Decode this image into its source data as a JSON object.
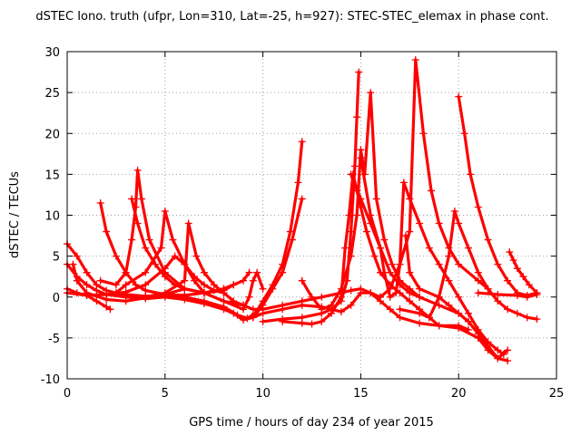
{
  "chart_data": {
    "type": "scatter",
    "title": "dSTEC Iono. truth (ufpr, Lon=310, Lat=-25, h=927): STEC-STEC_elemax in phase cont.",
    "xlabel": "GPS time / hours of day 234 of year 2015",
    "ylabel": "dSTEC  / TECUs",
    "xlim": [
      0,
      25
    ],
    "ylim": [
      -10,
      30
    ],
    "xticks": [
      0,
      5,
      10,
      15,
      20,
      25
    ],
    "yticks": [
      -10,
      -5,
      0,
      5,
      10,
      15,
      20,
      25,
      30
    ],
    "grid": true,
    "marker_color": "#ff0000",
    "series": [
      {
        "points": [
          [
            0,
            6.5
          ],
          [
            0.5,
            5
          ],
          [
            1,
            3
          ],
          [
            1.5,
            1.5
          ],
          [
            2,
            0.8
          ],
          [
            2.5,
            0.5
          ],
          [
            3,
            0.3
          ],
          [
            4,
            0.1
          ],
          [
            5,
            0.2
          ],
          [
            6,
            0
          ],
          [
            7,
            -0.5
          ],
          [
            8,
            -1.2
          ],
          [
            8.7,
            -2.2
          ],
          [
            9.2,
            -2.6
          ],
          [
            9.6,
            -2
          ],
          [
            10,
            -0.5
          ],
          [
            10.5,
            1.5
          ],
          [
            11,
            4
          ],
          [
            11.4,
            8
          ],
          [
            11.8,
            14
          ],
          [
            12,
            19
          ]
        ]
      },
      {
        "points": [
          [
            0,
            4
          ],
          [
            0.5,
            2.5
          ],
          [
            1,
            1.5
          ],
          [
            1.5,
            0.8
          ],
          [
            2,
            0.3
          ],
          [
            3,
            0
          ],
          [
            4,
            -0.2
          ],
          [
            5,
            0
          ],
          [
            6,
            -0.3
          ],
          [
            7,
            -0.8
          ],
          [
            8,
            -1.5
          ],
          [
            8.5,
            -2
          ],
          [
            9,
            -2.8
          ],
          [
            9.5,
            -2.5
          ],
          [
            10,
            -1
          ],
          [
            10.5,
            1
          ],
          [
            11,
            3
          ],
          [
            11.5,
            7
          ],
          [
            12,
            12
          ]
        ]
      },
      {
        "points": [
          [
            0,
            1
          ],
          [
            0.5,
            0.5
          ],
          [
            1,
            0.2
          ],
          [
            1.5,
            -0.5
          ],
          [
            2,
            -1.2
          ],
          [
            2.2,
            -1.5
          ]
        ]
      },
      {
        "points": [
          [
            0,
            0.5
          ],
          [
            1,
            0.2
          ],
          [
            2,
            0.3
          ],
          [
            3,
            0.6
          ],
          [
            4,
            1.5
          ],
          [
            5,
            3.5
          ],
          [
            5.5,
            5
          ],
          [
            6,
            4
          ],
          [
            6.5,
            2
          ],
          [
            7,
            0.5
          ],
          [
            8,
            -0.5
          ],
          [
            9,
            -1
          ],
          [
            9.5,
            -1.5
          ],
          [
            10,
            -1.5
          ],
          [
            11,
            -1
          ],
          [
            12,
            -0.5
          ],
          [
            13,
            0
          ],
          [
            14,
            0.5
          ],
          [
            14.5,
            0.8
          ],
          [
            15,
            1
          ],
          [
            15.5,
            0.5
          ],
          [
            16,
            -0.5
          ],
          [
            16.5,
            -1.5
          ],
          [
            17,
            -2.5
          ],
          [
            18,
            -3.2
          ],
          [
            19,
            -3.5
          ],
          [
            20,
            -3.8
          ],
          [
            21,
            -5
          ],
          [
            21.5,
            -6.5
          ],
          [
            22,
            -7.5
          ],
          [
            22.5,
            -6.5
          ]
        ]
      },
      {
        "points": [
          [
            1.7,
            11.5
          ],
          [
            2,
            8
          ],
          [
            2.5,
            5
          ],
          [
            3,
            3
          ],
          [
            3.5,
            1.5
          ],
          [
            4,
            0.8
          ],
          [
            5,
            0.3
          ],
          [
            6,
            0.2
          ],
          [
            7,
            0.5
          ],
          [
            8,
            1
          ],
          [
            8.5,
            1.5
          ]
        ]
      },
      {
        "points": [
          [
            1.7,
            2
          ],
          [
            2.5,
            1.5
          ],
          [
            3,
            3
          ],
          [
            3.3,
            7
          ],
          [
            3.5,
            11
          ],
          [
            3.6,
            15.5
          ],
          [
            3.8,
            12
          ],
          [
            4.2,
            7
          ],
          [
            5,
            3
          ],
          [
            6,
            1
          ],
          [
            7,
            0.5
          ],
          [
            8,
            0.8
          ],
          [
            8.5,
            1.5
          ]
        ]
      },
      {
        "points": [
          [
            3.3,
            12
          ],
          [
            3.6,
            9
          ],
          [
            4,
            6
          ],
          [
            4.5,
            4
          ],
          [
            5,
            2.5
          ],
          [
            5.5,
            1.5
          ],
          [
            6,
            1
          ],
          [
            7,
            0.5
          ],
          [
            8,
            1
          ],
          [
            9,
            2
          ],
          [
            9.3,
            3
          ]
        ]
      },
      {
        "points": [
          [
            2.5,
            0.5
          ],
          [
            3,
            1.5
          ],
          [
            4,
            3
          ],
          [
            4.8,
            6
          ],
          [
            5,
            10.5
          ],
          [
            5.4,
            7
          ],
          [
            6,
            4
          ],
          [
            6.5,
            2.5
          ],
          [
            7,
            1.5
          ],
          [
            7.5,
            0.8
          ],
          [
            8,
            0.5
          ]
        ]
      },
      {
        "points": [
          [
            4,
            0
          ],
          [
            5,
            0.5
          ],
          [
            6,
            2
          ],
          [
            6.2,
            9
          ],
          [
            6.6,
            5
          ],
          [
            7,
            3
          ],
          [
            7.5,
            1.5
          ],
          [
            8,
            0.5
          ],
          [
            8.5,
            -0.5
          ],
          [
            9,
            -1
          ]
        ]
      },
      {
        "points": [
          [
            10,
            -3
          ],
          [
            11,
            -2.7
          ],
          [
            12,
            -2.5
          ],
          [
            13,
            -2
          ],
          [
            13.5,
            -1.5
          ],
          [
            14,
            -0.5
          ],
          [
            14.3,
            2
          ],
          [
            14.5,
            8
          ],
          [
            14.7,
            16
          ],
          [
            14.8,
            22
          ],
          [
            14.9,
            27.5
          ]
        ]
      },
      {
        "points": [
          [
            11,
            -3
          ],
          [
            12,
            -3.2
          ],
          [
            12.5,
            -3.3
          ],
          [
            13,
            -3
          ],
          [
            13.5,
            -2
          ],
          [
            14,
            0
          ],
          [
            14.2,
            6
          ],
          [
            14.4,
            10
          ],
          [
            14.6,
            15
          ],
          [
            14.8,
            13
          ],
          [
            15,
            11
          ],
          [
            15.3,
            8
          ],
          [
            15.7,
            5
          ],
          [
            16,
            3
          ],
          [
            16.5,
            1.5
          ],
          [
            17,
            0.5
          ],
          [
            17.5,
            -0.5
          ],
          [
            18,
            -1.5
          ],
          [
            18.5,
            -2.5
          ],
          [
            19,
            -3.5
          ],
          [
            20,
            -3.5
          ],
          [
            20.5,
            -4
          ]
        ]
      },
      {
        "points": [
          [
            12,
            2
          ],
          [
            12.5,
            0
          ],
          [
            13,
            -1.5
          ],
          [
            13.5,
            -1
          ],
          [
            14,
            1
          ],
          [
            14.5,
            5
          ],
          [
            14.8,
            10
          ],
          [
            15,
            18
          ],
          [
            15.2,
            15
          ],
          [
            15.5,
            25
          ],
          [
            15.8,
            12
          ],
          [
            16.2,
            7
          ],
          [
            16.6,
            4
          ],
          [
            17,
            2
          ],
          [
            17.5,
            1
          ],
          [
            18,
            0
          ]
        ]
      },
      {
        "points": [
          [
            14.5,
            15
          ],
          [
            15,
            12
          ],
          [
            15.5,
            9
          ],
          [
            16,
            6
          ],
          [
            16.5,
            3
          ],
          [
            17,
            1.5
          ],
          [
            17.5,
            0.5
          ],
          [
            18,
            0
          ],
          [
            19,
            -1
          ],
          [
            20,
            -2
          ],
          [
            20.5,
            -3
          ],
          [
            21,
            -4.5
          ],
          [
            21.5,
            -6
          ],
          [
            22,
            -7.5
          ],
          [
            22.5,
            -7.8
          ]
        ]
      },
      {
        "points": [
          [
            15,
            17
          ],
          [
            15.5,
            10
          ],
          [
            16,
            6
          ],
          [
            16.2,
            3
          ],
          [
            16.5,
            0
          ],
          [
            16.8,
            0.5
          ],
          [
            17,
            4
          ],
          [
            17.2,
            14
          ],
          [
            17.5,
            12
          ],
          [
            18,
            9
          ],
          [
            18.5,
            6
          ],
          [
            19,
            4
          ],
          [
            19.5,
            2
          ],
          [
            20,
            0
          ],
          [
            20.5,
            -2
          ],
          [
            21,
            -4
          ],
          [
            21.5,
            -5.5
          ],
          [
            22,
            -6.5
          ],
          [
            22.3,
            -7
          ]
        ]
      },
      {
        "points": [
          [
            16,
            0
          ],
          [
            16.5,
            1
          ],
          [
            17,
            4
          ],
          [
            17.5,
            8
          ],
          [
            17.8,
            29
          ],
          [
            18.2,
            20
          ],
          [
            18.6,
            13
          ],
          [
            19,
            9
          ],
          [
            19.5,
            6
          ],
          [
            20,
            4
          ],
          [
            21,
            2
          ],
          [
            21.5,
            1
          ]
        ]
      },
      {
        "points": [
          [
            17.3,
            7.5
          ],
          [
            17.5,
            3
          ],
          [
            18,
            1
          ],
          [
            19,
            0
          ],
          [
            19.5,
            -1
          ],
          [
            20,
            -2
          ],
          [
            20.5,
            -3
          ]
        ]
      },
      {
        "points": [
          [
            17,
            -1.5
          ],
          [
            18,
            -2
          ],
          [
            18.5,
            -2.5
          ],
          [
            19,
            0
          ],
          [
            19.5,
            5
          ],
          [
            19.8,
            10.5
          ],
          [
            20,
            9
          ],
          [
            20.5,
            6
          ],
          [
            21,
            3
          ],
          [
            21.5,
            1
          ],
          [
            22,
            -0.5
          ],
          [
            22.5,
            -1.5
          ],
          [
            23,
            -2
          ],
          [
            23.5,
            -2.5
          ],
          [
            24,
            -2.7
          ]
        ]
      },
      {
        "points": [
          [
            20,
            24.5
          ],
          [
            20.3,
            20
          ],
          [
            20.6,
            15
          ],
          [
            21,
            11
          ],
          [
            21.5,
            7
          ],
          [
            22,
            4
          ],
          [
            22.5,
            2
          ],
          [
            23,
            0.5
          ],
          [
            23.5,
            0.2
          ],
          [
            24,
            0.5
          ]
        ]
      },
      {
        "points": [
          [
            21,
            0.5
          ],
          [
            22,
            0.3
          ],
          [
            23,
            0.2
          ],
          [
            23.5,
            0
          ],
          [
            24,
            0.3
          ]
        ]
      },
      {
        "points": [
          [
            22.6,
            5.5
          ],
          [
            22.8,
            4.5
          ],
          [
            23,
            3.5
          ],
          [
            23.3,
            2.5
          ],
          [
            23.6,
            1.5
          ],
          [
            24,
            0.5
          ]
        ]
      },
      {
        "points": [
          [
            0.3,
            4
          ],
          [
            0.5,
            2
          ],
          [
            1,
            0.5
          ],
          [
            2,
            -0.3
          ],
          [
            3,
            -0.5
          ],
          [
            5,
            0.3
          ],
          [
            6,
            1
          ],
          [
            7,
            0.5
          ],
          [
            8,
            -0.5
          ],
          [
            9,
            -1.5
          ],
          [
            9.3,
            0
          ],
          [
            9.5,
            2
          ],
          [
            9.7,
            3
          ],
          [
            10,
            1
          ]
        ]
      },
      {
        "points": [
          [
            9.5,
            -2.5
          ],
          [
            10,
            -2
          ],
          [
            11,
            -1.5
          ],
          [
            12,
            -1
          ],
          [
            13,
            -1.2
          ],
          [
            13.5,
            -1.5
          ],
          [
            14,
            -1.8
          ],
          [
            14.5,
            -1
          ],
          [
            15,
            0.5
          ],
          [
            15.5,
            0.5
          ],
          [
            16,
            0
          ]
        ]
      }
    ]
  }
}
